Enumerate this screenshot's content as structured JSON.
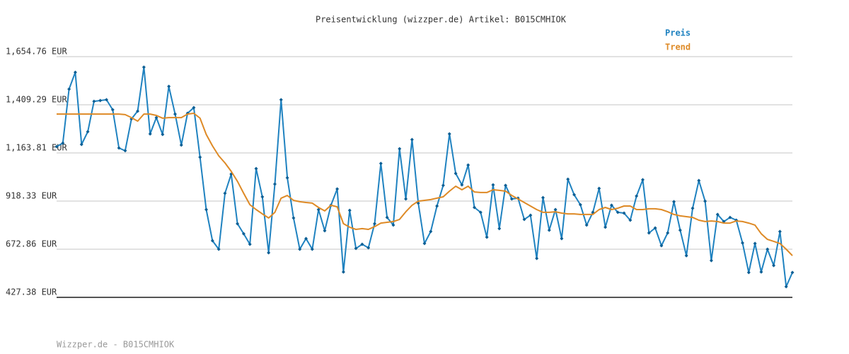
{
  "chart_data": {
    "type": "line",
    "title": "Preisentwicklung (wizzper.de) Artikel: B015CMHIOK",
    "footer": "Wizzper.de - B015CMHIOK",
    "legend": "top-right",
    "grid": true,
    "ylim": [
      427.38,
      1654.76
    ],
    "yticks": [
      {
        "value": 427.38,
        "label": "427.38 EUR"
      },
      {
        "value": 672.86,
        "label": "672.86 EUR"
      },
      {
        "value": 918.33,
        "label": "918.33 EUR"
      },
      {
        "value": 1163.81,
        "label": "1,163.81 EUR"
      },
      {
        "value": 1409.29,
        "label": "1,409.29 EUR"
      },
      {
        "value": 1654.76,
        "label": "1,654.76 EUR"
      }
    ],
    "series": [
      {
        "name": "Preis",
        "color": "#1f82c0",
        "values": [
          1196,
          1214,
          1489,
          1575,
          1207,
          1272,
          1427,
          1431,
          1435,
          1384,
          1189,
          1175,
          1337,
          1377,
          1601,
          1261,
          1344,
          1258,
          1503,
          1362,
          1204,
          1366,
          1395,
          1142,
          875,
          716,
          673,
          958,
          1056,
          803,
          752,
          698,
          1084,
          940,
          655,
          1005,
          1435,
          1037,
          832,
          673,
          727,
          673,
          875,
          767,
          897,
          980,
          557,
          871,
          677,
          698,
          680,
          803,
          1110,
          835,
          796,
          1185,
          929,
          1232,
          908,
          702,
          763,
          893,
          998,
          1261,
          1059,
          1001,
          1102,
          886,
          861,
          734,
          1001,
          778,
          998,
          929,
          933,
          825,
          846,
          626,
          936,
          770,
          875,
          727,
          1030,
          951,
          900,
          796,
          861,
          983,
          785,
          897,
          861,
          857,
          821,
          944,
          1027,
          756,
          781,
          691,
          756,
          915,
          770,
          640,
          882,
          1023,
          918,
          615,
          850,
          814,
          835,
          821,
          705,
          554,
          702,
          557,
          673,
          590,
          763,
          482,
          554
        ]
      },
      {
        "name": "Trend",
        "color": "#de8a26",
        "values": [
          1362,
          1362,
          1362,
          1362,
          1362,
          1362,
          1362,
          1362,
          1362,
          1362,
          1362,
          1359,
          1344,
          1326,
          1362,
          1362,
          1355,
          1341,
          1344,
          1344,
          1344,
          1362,
          1366,
          1341,
          1258,
          1200,
          1149,
          1113,
          1070,
          1019,
          958,
          900,
          875,
          853,
          832,
          861,
          933,
          947,
          922,
          915,
          911,
          908,
          886,
          868,
          897,
          889,
          803,
          785,
          774,
          778,
          774,
          788,
          806,
          810,
          814,
          825,
          864,
          897,
          918,
          922,
          926,
          933,
          940,
          969,
          994,
          976,
          994,
          965,
          962,
          962,
          976,
          973,
          969,
          947,
          929,
          911,
          893,
          875,
          861,
          861,
          864,
          857,
          853,
          853,
          850,
          850,
          850,
          875,
          886,
          875,
          882,
          893,
          893,
          875,
          875,
          879,
          879,
          875,
          864,
          850,
          843,
          839,
          835,
          821,
          814,
          817,
          814,
          806,
          806,
          817,
          814,
          806,
          796,
          752,
          723,
          713,
          702,
          673,
          640
        ]
      }
    ]
  }
}
